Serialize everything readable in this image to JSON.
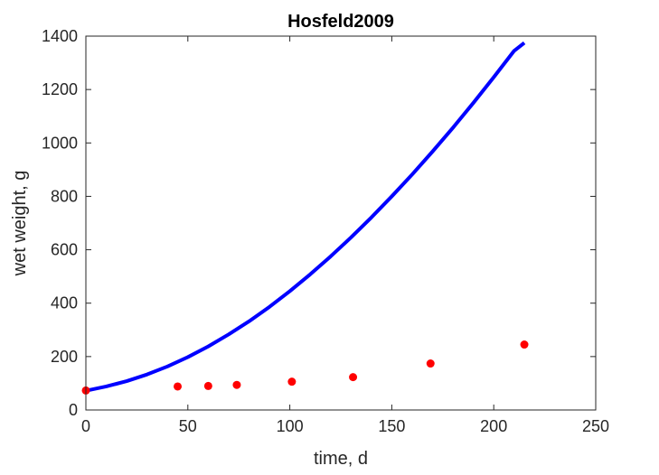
{
  "chart_data": {
    "type": "line",
    "title": "Hosfeld2009",
    "xlabel": "time, d",
    "ylabel": "wet weight, g",
    "xlim": [
      0,
      250
    ],
    "ylim": [
      0,
      1400
    ],
    "xticks": [
      "0",
      "50",
      "100",
      "150",
      "200",
      "250"
    ],
    "yticks": [
      "0",
      "200",
      "400",
      "600",
      "800",
      "1000",
      "1200",
      "1400"
    ],
    "grid": false,
    "series": [
      {
        "kind": "line",
        "color": "#0000ff",
        "x": [
          0,
          10,
          20,
          30,
          40,
          50,
          60,
          70,
          80,
          90,
          100,
          110,
          120,
          130,
          140,
          150,
          160,
          170,
          180,
          190,
          200,
          210,
          215
        ],
        "y": [
          72,
          88,
          108,
          133,
          163,
          198,
          238,
          283,
          332,
          386,
          445,
          508,
          575,
          646,
          721,
          800,
          882,
          968,
          1057,
          1150,
          1246,
          1345,
          1375
        ]
      },
      {
        "kind": "scatter",
        "color": "#ff0000",
        "x": [
          0,
          45,
          60,
          74,
          101,
          131,
          169,
          215
        ],
        "y": [
          73,
          88,
          90,
          94,
          106,
          123,
          174,
          245
        ]
      }
    ]
  }
}
